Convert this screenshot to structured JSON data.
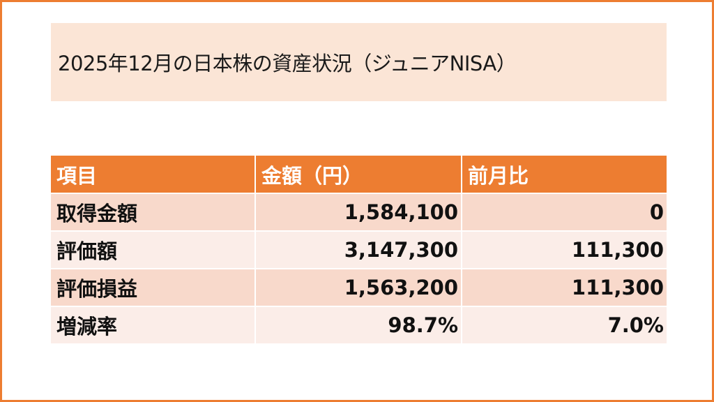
{
  "title": "2025年12月の日本株の資産状況（ジュニアNISA）",
  "table": {
    "headers": [
      "項目",
      "金額（円）",
      "前月比"
    ],
    "rows": [
      {
        "item": "取得金額",
        "amount": "1,584,100",
        "change": "0"
      },
      {
        "item": "評価額",
        "amount": "3,147,300",
        "change": "111,300"
      },
      {
        "item": "評価損益",
        "amount": "1,563,200",
        "change": "111,300"
      },
      {
        "item": "増減率",
        "amount": "98.7%",
        "change": "7.0%"
      }
    ]
  },
  "colors": {
    "accent": "#ED7D31",
    "title_background": "#FBE5D6",
    "row_band_dark": "#F8D9CB",
    "row_band_light": "#FBEDE8"
  }
}
